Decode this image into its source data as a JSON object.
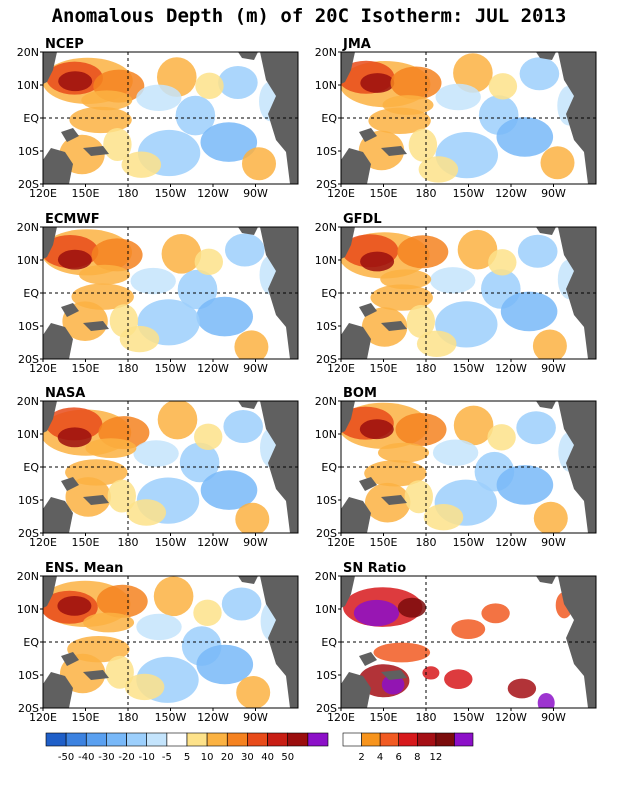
{
  "title": "Anomalous Depth (m) of 20C Isotherm: JUL 2013",
  "chart_data": {
    "type": "heatmap",
    "xlabels": [
      "120E",
      "150E",
      "180",
      "150W",
      "120W",
      "90W"
    ],
    "ylabels": [
      "20N",
      "10N",
      "EQ",
      "10S",
      "20S"
    ],
    "panels": [
      {
        "name": "NCEP",
        "scale": "anomaly"
      },
      {
        "name": "JMA",
        "scale": "anomaly"
      },
      {
        "name": "ECMWF",
        "scale": "anomaly"
      },
      {
        "name": "GFDL",
        "scale": "anomaly"
      },
      {
        "name": "NASA",
        "scale": "anomaly"
      },
      {
        "name": "BOM",
        "scale": "anomaly"
      },
      {
        "name": "ENS. Mean",
        "scale": "anomaly"
      },
      {
        "name": "SN Ratio",
        "scale": "snr"
      }
    ],
    "colorbars": [
      {
        "id": "anomaly",
        "tick_labels": [
          "-50",
          "-40",
          "-30",
          "-20",
          "-10",
          "-5",
          "5",
          "10",
          "20",
          "30",
          "40",
          "50"
        ],
        "colors": [
          "#1f5fc8",
          "#3c82e0",
          "#5aa0f0",
          "#78b8f8",
          "#9ccffc",
          "#c4e4fc",
          "#ffffff",
          "#fde28a",
          "#fbb242",
          "#f58220",
          "#e84b1a",
          "#c81e14",
          "#9b0e0e",
          "#8c10c8"
        ]
      },
      {
        "id": "snr",
        "tick_labels": [
          "2",
          "4",
          "6",
          "8",
          "12"
        ],
        "colors": [
          "#ffffff",
          "#f7941d",
          "#f15a22",
          "#d7191c",
          "#a50f15",
          "#7b0c0c",
          "#8c10c8"
        ]
      }
    ]
  },
  "colors": {
    "land": "#606060",
    "grid": "#000000"
  }
}
